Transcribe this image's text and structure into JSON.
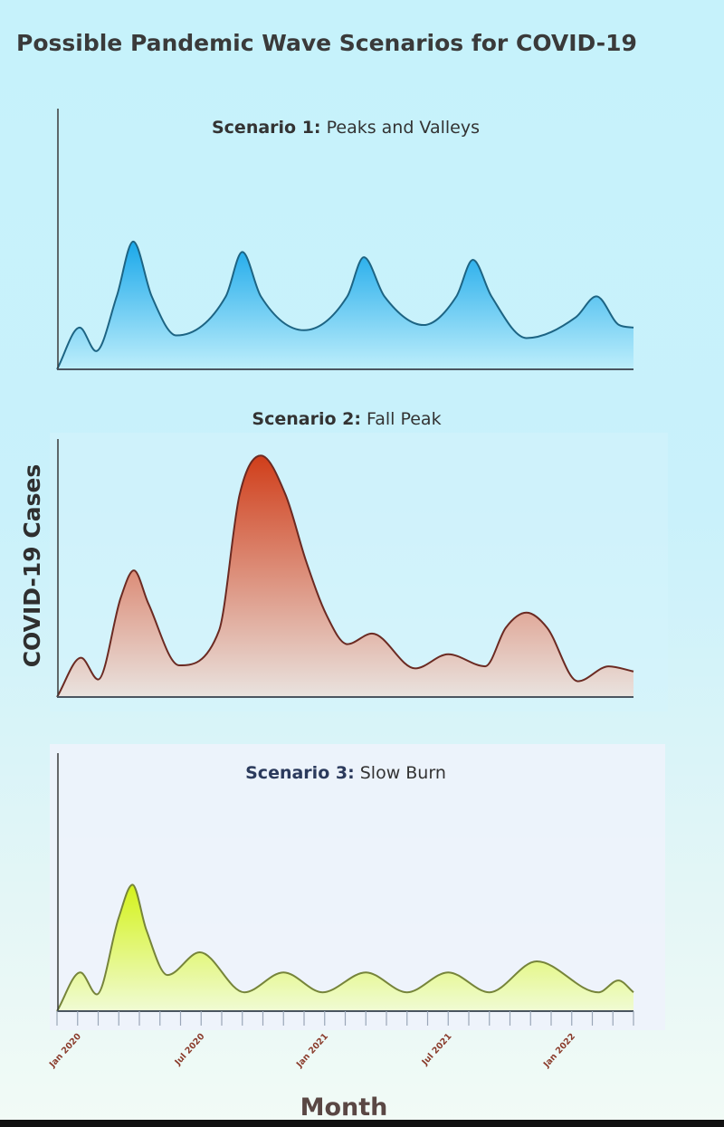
{
  "chart_data": {
    "type": "area",
    "title": "Possible Pandemic Wave Scenarios for COVID-19",
    "xlabel": "Month",
    "ylabel": "COVID-19 Cases",
    "xlim": [
      "2019-12-01",
      "2022-04-01"
    ],
    "ylim": [
      0,
      100
    ],
    "x_tick_interval": "month",
    "x_tick_labels": [
      "Jan 2020",
      "Jul 2020",
      "Jan 2021",
      "Jul 2021",
      "Jan 2022"
    ],
    "x_tick_label_dates": [
      "2020-01-01",
      "2020-07-01",
      "2021-01-01",
      "2021-07-01",
      "2022-01-01"
    ],
    "y_ticks": "none",
    "grid": false,
    "panels": [
      {
        "title_bold": "Scenario 1:",
        "title_rest": "Peaks and Valleys",
        "fill_top": "#1aa8ea",
        "fill_bottom": "#bdeefb",
        "line_color": "#1d6483",
        "points": [
          [
            "2019-12-01",
            0
          ],
          [
            "2020-01-04",
            16
          ],
          [
            "2020-01-28",
            7
          ],
          [
            "2020-02-28",
            28
          ],
          [
            "2020-03-22",
            49
          ],
          [
            "2020-04-19",
            28
          ],
          [
            "2020-05-25",
            13
          ],
          [
            "2020-08-07",
            28
          ],
          [
            "2020-09-01",
            45
          ],
          [
            "2020-09-28",
            28
          ],
          [
            "2020-12-01",
            15
          ],
          [
            "2021-02-04",
            28
          ],
          [
            "2021-02-28",
            43
          ],
          [
            "2021-03-28",
            28
          ],
          [
            "2021-05-25",
            17
          ],
          [
            "2021-07-13",
            28
          ],
          [
            "2021-08-07",
            42
          ],
          [
            "2021-09-04",
            28
          ],
          [
            "2021-10-25",
            12
          ],
          [
            "2022-01-07",
            20
          ],
          [
            "2022-02-07",
            28
          ],
          [
            "2022-03-10",
            17
          ],
          [
            "2022-04-01",
            16
          ]
        ]
      },
      {
        "title_bold": "Scenario 2:",
        "title_rest": "Fall Peak",
        "fill_top": "#d03e1a",
        "fill_bottom": "#e9e3df",
        "line_color": "#6b2a22",
        "points": [
          [
            "2019-12-01",
            0
          ],
          [
            "2020-01-06",
            15.2
          ],
          [
            "2020-02-01",
            6.8
          ],
          [
            "2020-03-04",
            38.6
          ],
          [
            "2020-03-23",
            49.1
          ],
          [
            "2020-04-14",
            36.3
          ],
          [
            "2020-05-29",
            12.3
          ],
          [
            "2020-07-27",
            25.7
          ],
          [
            "2020-08-27",
            78.4
          ],
          [
            "2020-09-28",
            93.6
          ],
          [
            "2020-11-04",
            78.4
          ],
          [
            "2020-12-04",
            52.6
          ],
          [
            "2021-01-04",
            31.6
          ],
          [
            "2021-02-04",
            20.5
          ],
          [
            "2021-03-10",
            24.6
          ],
          [
            "2021-05-13",
            11.1
          ],
          [
            "2021-07-01",
            16.6
          ],
          [
            "2021-08-25",
            11.9
          ],
          [
            "2021-09-25",
            26.9
          ],
          [
            "2021-10-25",
            32.7
          ],
          [
            "2021-11-25",
            26.9
          ],
          [
            "2022-01-10",
            6.1
          ],
          [
            "2022-02-25",
            11.9
          ],
          [
            "2022-04-01",
            9.9
          ]
        ]
      },
      {
        "title_bold": "Scenario 3:",
        "title_rest": "Slow Burn",
        "fill_top": "#d4f21a",
        "fill_bottom": "#f0fbd4",
        "line_color": "#76843a",
        "points": [
          [
            "2019-12-01",
            0
          ],
          [
            "2020-01-05",
            15
          ],
          [
            "2020-01-29",
            6.5
          ],
          [
            "2020-03-01",
            36.3
          ],
          [
            "2020-03-21",
            49
          ],
          [
            "2020-04-11",
            31.6
          ],
          [
            "2020-05-12",
            14
          ],
          [
            "2020-06-29",
            22.8
          ],
          [
            "2020-09-04",
            7.3
          ],
          [
            "2020-11-01",
            15
          ],
          [
            "2020-12-28",
            7.3
          ],
          [
            "2021-03-01",
            15
          ],
          [
            "2021-05-01",
            7.3
          ],
          [
            "2021-07-01",
            15
          ],
          [
            "2021-09-01",
            7.3
          ],
          [
            "2021-11-10",
            19.3
          ],
          [
            "2022-02-10",
            7.3
          ],
          [
            "2022-03-09",
            11.9
          ],
          [
            "2022-04-01",
            7.3
          ]
        ]
      }
    ]
  }
}
